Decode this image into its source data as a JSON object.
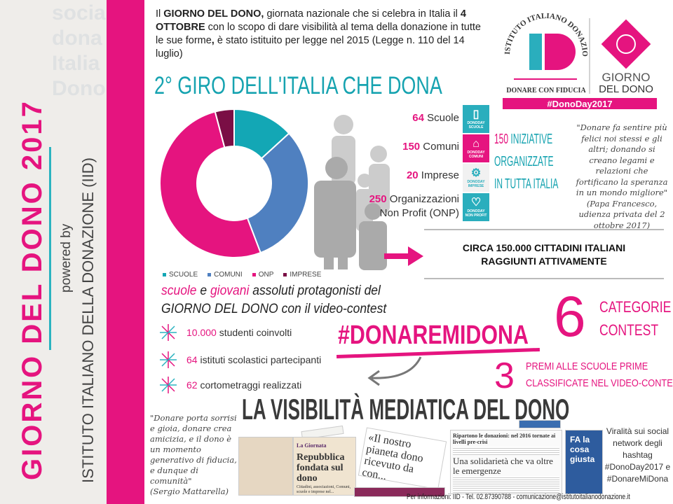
{
  "sidebar": {
    "title": "GIORNO DEL DONO 2017",
    "powered": "powered by",
    "institute": "ISTITUTO ITALIANO DELLA DONAZIONE (IID)",
    "background_words": [
      "dona",
      "Italia",
      "Dono",
      "sociale"
    ]
  },
  "intro": {
    "p1": "Il ",
    "b1": "GIORNO DEL DONO,",
    "p2": " giornata nazionale che si celebra in Italia il ",
    "b2": "4 OTTOBRE",
    "p3": " con lo scopo di dare visibilità al tema della donazione in tutte le sue forme",
    "b3": ",",
    "p4": " è stato istituito per legge nel 2015 (Legge n. 110 del 14 luglio)"
  },
  "title": "2° GIRO DELL'ITALIA CHE DONA",
  "logo": {
    "arc": "ISTITUTO ITALIANO DONAZIONE",
    "letters": "ID",
    "tagline": "DONARE CON FIDUCIA",
    "giorno": "GIORNO",
    "deldono": "DEL DONO",
    "hashtag": "#DonoDay2017"
  },
  "chart_data": {
    "type": "pie",
    "donut": true,
    "categories": [
      "SCUOLE",
      "COMUNI",
      "ONP",
      "IMPRESE"
    ],
    "values": [
      64,
      150,
      250,
      20
    ],
    "colors": [
      "#13a7b5",
      "#4f80c0",
      "#e5147f",
      "#7a0e45"
    ],
    "legend_position": "bottom"
  },
  "stats": [
    {
      "num": "64",
      "label": " Scuole"
    },
    {
      "num": "150",
      "label": " Comuni"
    },
    {
      "num": "20",
      "label": " Imprese"
    },
    {
      "num": "250",
      "label": " Organizzazioni",
      "line2": "Non Profit (ONP)"
    }
  ],
  "tiles": [
    {
      "icon": "book-icon",
      "label": "SCUOLE",
      "sub": "DONODAY",
      "color": "#2aaebd"
    },
    {
      "icon": "building-icon",
      "label": "COMUNI",
      "sub": "DONODAY",
      "color": "#e5147f"
    },
    {
      "icon": "gears-icon",
      "label": "IMPRESE",
      "sub": "DONODAY",
      "color": "#f1f1f1"
    },
    {
      "icon": "heart-icon",
      "label": "NON PROFIT",
      "sub": "DONODAY",
      "color": "#2aaebd"
    }
  ],
  "initiatives": {
    "num": "150",
    "l1": " INIZIATIVE",
    "l2": "ORGANIZZATE",
    "l3": "IN TUTTA ITALIA"
  },
  "quote_pope": {
    "text": "\"Donare fa sentire più felici noi stessi e gli altri; donando si creano legami e relazioni che fortificano la speranza in un mondo migliore\"",
    "source": "(Papa Francesco, udienza privata del 2 ottobre 2017)"
  },
  "reach": {
    "l1": "CIRCA 150.000 CITTADINI ITALIANI",
    "l2": "RAGGIUNTI ATTIVAMENTE"
  },
  "caption": {
    "w1": "scuole",
    "w2": " e ",
    "w3": "giovani",
    "w4": " assoluti protagonisti del",
    "l2": "GIORNO DEL DONO con il video-contest"
  },
  "bullets": [
    {
      "num": "10.000",
      "text": " studenti coinvolti"
    },
    {
      "num": "64",
      "text": " istituti scolastici partecipanti"
    },
    {
      "num": "62",
      "text": " cortometraggi realizzati"
    }
  ],
  "contest": {
    "hashtag": "#DONAREMIDONA",
    "six": "6",
    "cat1": "CATEGORIE",
    "cat2": "CONTEST",
    "three": "3",
    "premi1": "PREMI ALLE SCUOLE PRIME",
    "premi2": "CLASSIFICATE NEL VIDEO-CONTEST"
  },
  "media": {
    "title": "LA VISIBILITÀ MEDIATICA DEL DONO",
    "clips": {
      "c1_head": "La Giornata",
      "c1_title": "Repubblica fondata sul dono",
      "c1_body": "Cittadini, associazioni, Comuni, scuole e imprese nel...",
      "c2": "«Il nostro pianeta dono ricevuto da con...",
      "c3_head": "Ripartono le donazioni: nel 2016 tornate ai livelli pre-crisi",
      "c3_title": "Una solidarietà che va oltre le emergenze",
      "c4": "FA la cosa giusta"
    }
  },
  "quote_president": {
    "text": "\"Donare porta sorrisi e gioia, donare crea amicizia, e il dono è un momento generativo di fiducia, e dunque di comunità\"",
    "source": "(Sergio Mattarella)"
  },
  "viral": {
    "l1": "Viralità sui social network degli hashtag",
    "h1": "#DonoDay2017 e",
    "h2": "#DonareMiDona"
  },
  "footer": "Per informazioni: IID - Tel. 02.87390788 - comunicazione@istitutoitalianodonazione.it"
}
